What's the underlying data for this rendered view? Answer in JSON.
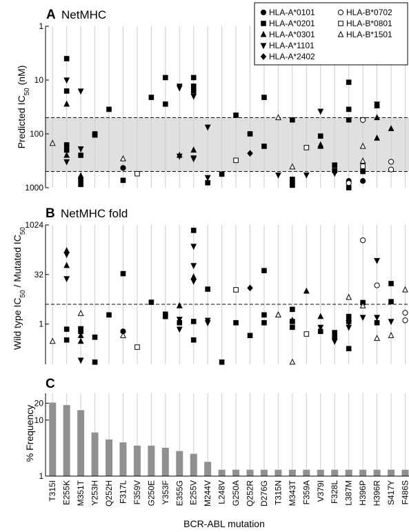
{
  "x_axis_title": "BCR-ABL mutation",
  "mutations": [
    "T315I",
    "E255K",
    "M351T",
    "Y253H",
    "Q252H",
    "F317L",
    "F359V",
    "G250E",
    "Y353F",
    "E355G",
    "E255V",
    "M244V",
    "L248V",
    "G250A",
    "Q252R",
    "D276G",
    "T315N",
    "M343T",
    "F359A",
    "V379I",
    "F328L",
    "L387M",
    "H396P",
    "H396R",
    "S417Y",
    "F486S"
  ],
  "alleles": [
    {
      "name": "HLA-A*0101",
      "marker": "circle-filled"
    },
    {
      "name": "HLA-A*0201",
      "marker": "square-filled"
    },
    {
      "name": "HLA-A*0301",
      "marker": "triangle-up-filled"
    },
    {
      "name": "HLA-A*1101",
      "marker": "triangle-down-filled"
    },
    {
      "name": "HLA-A*2402",
      "marker": "diamond-filled"
    },
    {
      "name": "HLA-B*0702",
      "marker": "circle-open"
    },
    {
      "name": "HLA-B*0801",
      "marker": "square-open"
    },
    {
      "name": "HLA-B*1501",
      "marker": "triangle-up-open"
    }
  ],
  "colors": {
    "band": "#e0e0e0",
    "bar": "#909090",
    "grid": "#cccccc",
    "ink": "#000000"
  },
  "chart_data": [
    {
      "panel_letter": "A",
      "panel_title": "NetMHC",
      "type": "scatter",
      "ylabel_pre": "Predicted IC",
      "ylabel_sub": "50",
      "ylabel_post": " (nM)",
      "yscale": "log",
      "ylim": [
        1,
        1000
      ],
      "y_inverted": true,
      "yticks": [
        1,
        10,
        100,
        1000
      ],
      "ytick_labels": [
        "1",
        "10",
        "100",
        "1000"
      ],
      "shaded_band": [
        50,
        500
      ],
      "legend_position": "top-right",
      "points": [
        [
          0,
          7,
          150
        ],
        [
          1,
          1,
          4
        ],
        [
          1,
          1,
          16
        ],
        [
          1,
          1,
          200
        ],
        [
          1,
          1,
          160
        ],
        [
          1,
          2,
          28
        ],
        [
          1,
          2,
          250
        ],
        [
          1,
          3,
          10
        ],
        [
          1,
          3,
          330
        ],
        [
          2,
          1,
          250
        ],
        [
          2,
          1,
          700
        ],
        [
          2,
          1,
          870
        ],
        [
          2,
          2,
          600
        ],
        [
          2,
          3,
          16
        ],
        [
          2,
          3,
          190
        ],
        [
          3,
          1,
          105
        ],
        [
          3,
          1,
          100
        ],
        [
          4,
          1,
          35
        ],
        [
          5,
          0,
          430
        ],
        [
          5,
          1,
          730
        ],
        [
          5,
          7,
          290
        ],
        [
          6,
          6,
          550
        ],
        [
          7,
          1,
          21
        ],
        [
          8,
          1,
          9
        ],
        [
          8,
          1,
          28
        ],
        [
          9,
          2,
          250
        ],
        [
          9,
          3,
          14
        ],
        [
          9,
          3,
          13
        ],
        [
          9,
          3,
          260
        ],
        [
          10,
          1,
          9
        ],
        [
          10,
          1,
          13
        ],
        [
          10,
          1,
          16
        ],
        [
          10,
          2,
          200
        ],
        [
          10,
          3,
          20
        ],
        [
          10,
          3,
          280
        ],
        [
          10,
          3,
          290
        ],
        [
          11,
          1,
          810
        ],
        [
          11,
          3,
          75
        ],
        [
          11,
          3,
          650
        ],
        [
          12,
          1,
          560
        ],
        [
          13,
          1,
          45
        ],
        [
          13,
          6,
          310
        ],
        [
          14,
          1,
          100
        ],
        [
          14,
          4,
          230
        ],
        [
          15,
          1,
          21
        ],
        [
          15,
          1,
          170
        ],
        [
          16,
          3,
          580
        ],
        [
          16,
          7,
          50
        ],
        [
          17,
          1,
          55
        ],
        [
          17,
          1,
          700
        ],
        [
          17,
          1,
          820
        ],
        [
          17,
          1,
          900
        ],
        [
          17,
          7,
          410
        ],
        [
          18,
          6,
          180
        ],
        [
          18,
          3,
          580
        ],
        [
          19,
          1,
          110
        ],
        [
          19,
          2,
          160
        ],
        [
          19,
          2,
          170
        ],
        [
          19,
          3,
          38
        ],
        [
          20,
          1,
          380
        ],
        [
          20,
          1,
          480
        ],
        [
          20,
          3,
          540
        ],
        [
          21,
          0,
          750
        ],
        [
          21,
          1,
          11
        ],
        [
          21,
          1,
          35
        ],
        [
          21,
          1,
          55
        ],
        [
          21,
          1,
          1000
        ],
        [
          21,
          5,
          820
        ],
        [
          22,
          0,
          750
        ],
        [
          22,
          1,
          500
        ],
        [
          22,
          3,
          55
        ],
        [
          22,
          5,
          55
        ],
        [
          22,
          6,
          400
        ],
        [
          22,
          7,
          170
        ],
        [
          22,
          7,
          320
        ],
        [
          23,
          1,
          30
        ],
        [
          23,
          2,
          50
        ],
        [
          23,
          2,
          120
        ],
        [
          23,
          3,
          28
        ],
        [
          24,
          2,
          80
        ],
        [
          24,
          5,
          330
        ],
        [
          24,
          5,
          460
        ]
      ]
    },
    {
      "panel_letter": "B",
      "panel_title": "NetMHC fold",
      "type": "scatter",
      "ylabel_pre": "Wild type IC",
      "ylabel_sub": "50",
      "ylabel_mid": " / Mutated IC",
      "ylabel_sub2": "50",
      "yscale": "log",
      "ylim": [
        0.06,
        1024
      ],
      "y_inverted": false,
      "yticks": [
        1,
        32,
        1024
      ],
      "ytick_labels": [
        "1",
        "32",
        "1024"
      ],
      "reference_line": 4,
      "points": [
        [
          0,
          7,
          0.3
        ],
        [
          1,
          1,
          0.7
        ],
        [
          1,
          1,
          0.33
        ],
        [
          1,
          2,
          170
        ],
        [
          1,
          2,
          60
        ],
        [
          1,
          3,
          130
        ],
        [
          1,
          3,
          24
        ],
        [
          2,
          1,
          0.7
        ],
        [
          2,
          1,
          0.6
        ],
        [
          2,
          1,
          0.72
        ],
        [
          2,
          2,
          0.45
        ],
        [
          2,
          2,
          0.3
        ],
        [
          2,
          3,
          0.08
        ],
        [
          2,
          7,
          2.1
        ],
        [
          3,
          1,
          0.4
        ],
        [
          3,
          1,
          0.07
        ],
        [
          4,
          1,
          1.9
        ],
        [
          5,
          0,
          0.6
        ],
        [
          5,
          1,
          34
        ],
        [
          5,
          7,
          0.45
        ],
        [
          6,
          6,
          0.2
        ],
        [
          7,
          1,
          4.6
        ],
        [
          8,
          1,
          1.7
        ],
        [
          8,
          1,
          2.0
        ],
        [
          9,
          1,
          1.1
        ],
        [
          9,
          2,
          3.6
        ],
        [
          9,
          3,
          1.4
        ],
        [
          9,
          3,
          0.7
        ],
        [
          10,
          1,
          700
        ],
        [
          10,
          1,
          1.2
        ],
        [
          10,
          1,
          0.33
        ],
        [
          10,
          2,
          27
        ],
        [
          10,
          3,
          20
        ],
        [
          10,
          3,
          60
        ],
        [
          10,
          3,
          230
        ],
        [
          11,
          1,
          11.5
        ],
        [
          11,
          3,
          1.3
        ],
        [
          11,
          3,
          1.1
        ],
        [
          12,
          1,
          0.07
        ],
        [
          13,
          1,
          1.1
        ],
        [
          13,
          6,
          11
        ],
        [
          14,
          1,
          0.45
        ],
        [
          14,
          4,
          12.5
        ],
        [
          15,
          1,
          1.1
        ],
        [
          15,
          1,
          1.9
        ],
        [
          15,
          1,
          42
        ],
        [
          16,
          2,
          1.9
        ],
        [
          16,
          7,
          1.9
        ],
        [
          17,
          1,
          0.8
        ],
        [
          17,
          1,
          2.8
        ],
        [
          17,
          1,
          1.2
        ],
        [
          17,
          2,
          1.3
        ],
        [
          17,
          7,
          0.07
        ],
        [
          18,
          6,
          0.5
        ],
        [
          18,
          2,
          10
        ],
        [
          19,
          1,
          0.6
        ],
        [
          19,
          2,
          1.7
        ],
        [
          19,
          3,
          0.8
        ],
        [
          20,
          1,
          0.42
        ],
        [
          20,
          1,
          0.55
        ],
        [
          20,
          3,
          0.3
        ],
        [
          21,
          1,
          1.7
        ],
        [
          21,
          1,
          1.2
        ],
        [
          21,
          1,
          0.18
        ],
        [
          21,
          3,
          1.1
        ],
        [
          21,
          3,
          0.8
        ],
        [
          21,
          7,
          6.5
        ],
        [
          22,
          1,
          4.5
        ],
        [
          22,
          3,
          1.6
        ],
        [
          22,
          5,
          350
        ],
        [
          22,
          7,
          3.6
        ],
        [
          23,
          1,
          1.1
        ],
        [
          23,
          3,
          1.6
        ],
        [
          23,
          3,
          85
        ],
        [
          23,
          5,
          15
        ],
        [
          23,
          7,
          0.37
        ],
        [
          24,
          1,
          17
        ],
        [
          24,
          1,
          4.8
        ],
        [
          24,
          3,
          1.2
        ],
        [
          24,
          7,
          0.45
        ],
        [
          25,
          5,
          2.2
        ],
        [
          25,
          5,
          1.3
        ],
        [
          25,
          7,
          11
        ]
      ]
    },
    {
      "panel_letter": "C",
      "type": "bar",
      "ylabel": "% Frequency",
      "yscale": "log",
      "ylim": [
        1,
        30
      ],
      "yticks": [
        1,
        10,
        20
      ],
      "ytick_labels": [
        "1",
        "10",
        "20"
      ],
      "values": [
        20.5,
        18.5,
        15,
        6,
        4.5,
        4,
        3.5,
        3.5,
        3.2,
        2.8,
        2.5,
        1.8,
        1.3,
        1.3,
        1.3,
        1.3,
        1.3,
        1.3,
        1.3,
        1.3,
        1.3,
        1.3,
        1.3,
        1.3,
        1.3,
        1.3
      ]
    }
  ]
}
